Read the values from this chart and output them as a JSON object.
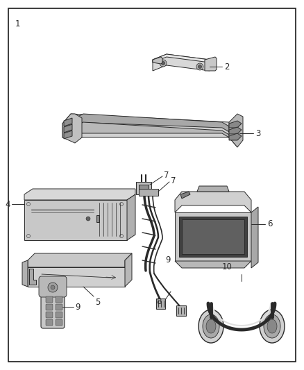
{
  "background_color": "#ffffff",
  "border_color": "#1a1a1a",
  "border_linewidth": 1.2,
  "label_color": "#1a1a1a",
  "label_fontsize": 8.5,
  "line_color": "#2a2a2a",
  "fig_width": 4.38,
  "fig_height": 5.33,
  "dpi": 100,
  "lw": 0.7,
  "gray": "#888888",
  "lightgray": "#cccccc"
}
